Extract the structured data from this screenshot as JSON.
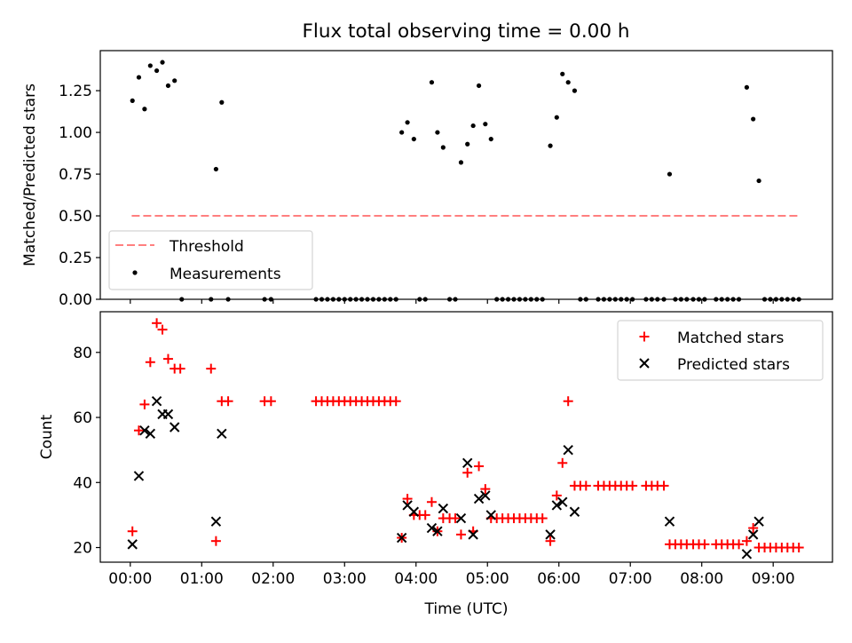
{
  "title": "Flux total observing time = 0.00 h",
  "chart_data": [
    {
      "type": "scatter",
      "ylabel": "Matched/Predicted stars",
      "xlabel": "",
      "ylim": [
        0,
        1.49
      ],
      "yticks": [
        "0.00",
        "0.25",
        "0.50",
        "0.75",
        "1.00",
        "1.25"
      ],
      "yticks_values": [
        0,
        0.25,
        0.5,
        0.75,
        1.0,
        1.25
      ],
      "xlim": [
        -0.42,
        9.83
      ],
      "grid": false,
      "legend": "bottom-left",
      "threshold": {
        "name": "Threshold",
        "value": 0.5,
        "x_range": [
          0.02,
          9.38
        ],
        "color": "#ff7f7f"
      },
      "series": [
        {
          "name": "Measurements",
          "color": "#000000",
          "points": [
            [
              0.03,
              1.19
            ],
            [
              0.12,
              1.33
            ],
            [
              0.2,
              1.14
            ],
            [
              0.28,
              1.4
            ],
            [
              0.37,
              1.37
            ],
            [
              0.45,
              1.42
            ],
            [
              0.53,
              1.28
            ],
            [
              0.62,
              1.31
            ],
            [
              1.2,
              0.78
            ],
            [
              1.28,
              1.18
            ],
            [
              3.8,
              1.0
            ],
            [
              3.88,
              1.06
            ],
            [
              3.97,
              0.96
            ],
            [
              4.22,
              1.3
            ],
            [
              4.3,
              1.0
            ],
            [
              4.38,
              0.91
            ],
            [
              4.63,
              0.82
            ],
            [
              4.72,
              0.93
            ],
            [
              4.8,
              1.04
            ],
            [
              4.88,
              1.28
            ],
            [
              4.97,
              1.05
            ],
            [
              5.05,
              0.96
            ],
            [
              5.88,
              0.92
            ],
            [
              5.97,
              1.09
            ],
            [
              6.05,
              1.35
            ],
            [
              6.13,
              1.3
            ],
            [
              6.22,
              1.25
            ],
            [
              7.55,
              0.75
            ],
            [
              8.63,
              1.27
            ],
            [
              8.72,
              1.08
            ],
            [
              8.8,
              0.71
            ],
            [
              0.72,
              0
            ],
            [
              1.13,
              0
            ],
            [
              1.37,
              0
            ],
            [
              1.88,
              0
            ],
            [
              1.97,
              0
            ],
            [
              2.6,
              0
            ],
            [
              2.68,
              0
            ],
            [
              2.76,
              0
            ],
            [
              2.84,
              0
            ],
            [
              2.92,
              0
            ],
            [
              3.0,
              0
            ],
            [
              3.08,
              0
            ],
            [
              3.16,
              0
            ],
            [
              3.24,
              0
            ],
            [
              3.32,
              0
            ],
            [
              3.4,
              0
            ],
            [
              3.48,
              0
            ],
            [
              3.56,
              0
            ],
            [
              3.64,
              0
            ],
            [
              3.72,
              0
            ],
            [
              4.05,
              0
            ],
            [
              4.13,
              0
            ],
            [
              4.47,
              0
            ],
            [
              4.55,
              0
            ],
            [
              5.13,
              0
            ],
            [
              5.21,
              0
            ],
            [
              5.29,
              0
            ],
            [
              5.37,
              0
            ],
            [
              5.45,
              0
            ],
            [
              5.53,
              0
            ],
            [
              5.61,
              0
            ],
            [
              5.69,
              0
            ],
            [
              5.77,
              0
            ],
            [
              6.3,
              0
            ],
            [
              6.38,
              0
            ],
            [
              6.55,
              0
            ],
            [
              6.63,
              0
            ],
            [
              6.71,
              0
            ],
            [
              6.79,
              0
            ],
            [
              6.87,
              0
            ],
            [
              6.95,
              0
            ],
            [
              7.03,
              0
            ],
            [
              7.22,
              0
            ],
            [
              7.3,
              0
            ],
            [
              7.38,
              0
            ],
            [
              7.47,
              0
            ],
            [
              7.63,
              0
            ],
            [
              7.71,
              0
            ],
            [
              7.79,
              0
            ],
            [
              7.88,
              0
            ],
            [
              7.96,
              0
            ],
            [
              8.04,
              0
            ],
            [
              8.2,
              0
            ],
            [
              8.28,
              0
            ],
            [
              8.36,
              0
            ],
            [
              8.44,
              0
            ],
            [
              8.52,
              0
            ],
            [
              8.88,
              0
            ],
            [
              8.96,
              0
            ],
            [
              9.04,
              0
            ],
            [
              9.12,
              0
            ],
            [
              9.2,
              0
            ],
            [
              9.28,
              0
            ],
            [
              9.36,
              0
            ]
          ]
        }
      ]
    },
    {
      "type": "scatter",
      "ylabel": "Count",
      "xlabel": "Time (UTC)",
      "ylim": [
        15.5,
        92.5
      ],
      "yticks": [
        "20",
        "40",
        "60",
        "80"
      ],
      "yticks_values": [
        20,
        40,
        60,
        80
      ],
      "xlim": [
        -0.42,
        9.83
      ],
      "xticks": [
        "00:00",
        "01:00",
        "02:00",
        "03:00",
        "04:00",
        "05:00",
        "06:00",
        "07:00",
        "08:00",
        "09:00"
      ],
      "xticks_values": [
        0,
        1,
        2,
        3,
        4,
        5,
        6,
        7,
        8,
        9
      ],
      "grid": false,
      "legend": "top-right",
      "series": [
        {
          "name": "Matched stars",
          "marker": "plus",
          "color": "#ff0000",
          "points": [
            [
              0.03,
              25
            ],
            [
              0.12,
              56
            ],
            [
              0.2,
              64
            ],
            [
              0.28,
              77
            ],
            [
              0.37,
              89
            ],
            [
              0.45,
              87
            ],
            [
              0.53,
              78
            ],
            [
              0.62,
              75
            ],
            [
              0.7,
              75
            ],
            [
              1.13,
              75
            ],
            [
              1.2,
              22
            ],
            [
              1.28,
              65
            ],
            [
              1.37,
              65
            ],
            [
              1.88,
              65
            ],
            [
              1.97,
              65
            ],
            [
              2.6,
              65
            ],
            [
              2.68,
              65
            ],
            [
              2.76,
              65
            ],
            [
              2.84,
              65
            ],
            [
              2.92,
              65
            ],
            [
              3.0,
              65
            ],
            [
              3.08,
              65
            ],
            [
              3.16,
              65
            ],
            [
              3.24,
              65
            ],
            [
              3.32,
              65
            ],
            [
              3.4,
              65
            ],
            [
              3.48,
              65
            ],
            [
              3.56,
              65
            ],
            [
              3.64,
              65
            ],
            [
              3.72,
              65
            ],
            [
              3.8,
              23
            ],
            [
              3.88,
              35
            ],
            [
              3.97,
              30
            ],
            [
              4.05,
              30
            ],
            [
              4.13,
              30
            ],
            [
              4.22,
              34
            ],
            [
              4.3,
              25
            ],
            [
              4.38,
              29
            ],
            [
              4.47,
              29
            ],
            [
              4.55,
              29
            ],
            [
              4.63,
              24
            ],
            [
              4.72,
              43
            ],
            [
              4.8,
              25
            ],
            [
              4.88,
              45
            ],
            [
              4.97,
              38
            ],
            [
              5.05,
              29
            ],
            [
              5.13,
              29
            ],
            [
              5.21,
              29
            ],
            [
              5.29,
              29
            ],
            [
              5.37,
              29
            ],
            [
              5.45,
              29
            ],
            [
              5.53,
              29
            ],
            [
              5.61,
              29
            ],
            [
              5.69,
              29
            ],
            [
              5.77,
              29
            ],
            [
              5.88,
              22
            ],
            [
              5.97,
              36
            ],
            [
              6.05,
              46
            ],
            [
              6.13,
              65
            ],
            [
              6.22,
              39
            ],
            [
              6.3,
              39
            ],
            [
              6.38,
              39
            ],
            [
              6.55,
              39
            ],
            [
              6.63,
              39
            ],
            [
              6.71,
              39
            ],
            [
              6.79,
              39
            ],
            [
              6.87,
              39
            ],
            [
              6.95,
              39
            ],
            [
              7.03,
              39
            ],
            [
              7.22,
              39
            ],
            [
              7.3,
              39
            ],
            [
              7.38,
              39
            ],
            [
              7.47,
              39
            ],
            [
              7.55,
              21
            ],
            [
              7.63,
              21
            ],
            [
              7.71,
              21
            ],
            [
              7.79,
              21
            ],
            [
              7.88,
              21
            ],
            [
              7.96,
              21
            ],
            [
              8.04,
              21
            ],
            [
              8.2,
              21
            ],
            [
              8.28,
              21
            ],
            [
              8.36,
              21
            ],
            [
              8.44,
              21
            ],
            [
              8.52,
              21
            ],
            [
              8.63,
              22
            ],
            [
              8.72,
              26
            ],
            [
              8.8,
              20
            ],
            [
              8.88,
              20
            ],
            [
              8.96,
              20
            ],
            [
              9.04,
              20
            ],
            [
              9.12,
              20
            ],
            [
              9.2,
              20
            ],
            [
              9.28,
              20
            ],
            [
              9.36,
              20
            ]
          ]
        },
        {
          "name": "Predicted stars",
          "marker": "x",
          "color": "#000000",
          "points": [
            [
              0.03,
              21
            ],
            [
              0.12,
              42
            ],
            [
              0.2,
              56
            ],
            [
              0.28,
              55
            ],
            [
              0.37,
              65
            ],
            [
              0.45,
              61
            ],
            [
              0.53,
              61
            ],
            [
              0.62,
              57
            ],
            [
              1.2,
              28
            ],
            [
              1.28,
              55
            ],
            [
              3.8,
              23
            ],
            [
              3.88,
              33
            ],
            [
              3.97,
              31
            ],
            [
              4.22,
              26
            ],
            [
              4.3,
              25
            ],
            [
              4.38,
              32
            ],
            [
              4.63,
              29
            ],
            [
              4.72,
              46
            ],
            [
              4.8,
              24
            ],
            [
              4.88,
              35
            ],
            [
              4.97,
              36
            ],
            [
              5.05,
              30
            ],
            [
              5.88,
              24
            ],
            [
              5.97,
              33
            ],
            [
              6.05,
              34
            ],
            [
              6.13,
              50
            ],
            [
              6.22,
              31
            ],
            [
              7.55,
              28
            ],
            [
              8.63,
              18
            ],
            [
              8.72,
              24
            ],
            [
              8.8,
              28
            ]
          ]
        }
      ]
    }
  ]
}
